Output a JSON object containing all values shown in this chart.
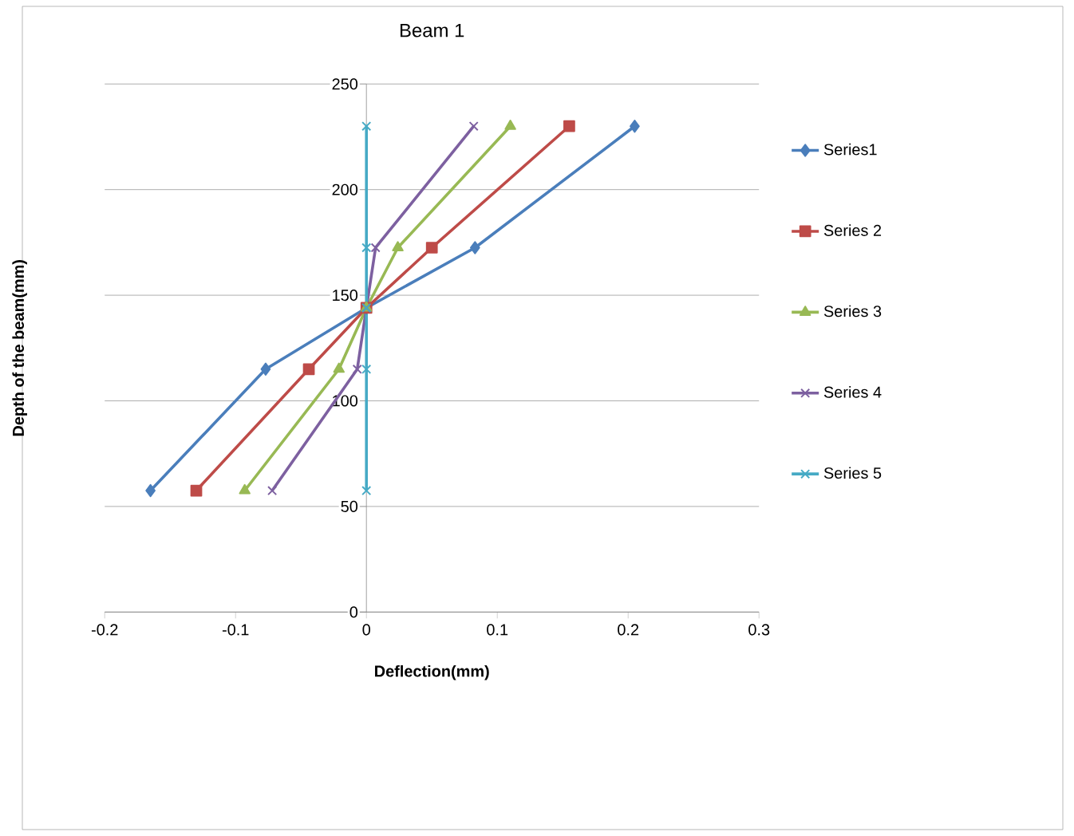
{
  "chart_data": {
    "type": "line",
    "title": "Beam 1",
    "xlabel": "Deflection(mm)",
    "ylabel": "Depth of the beam(mm)",
    "xlim": [
      -0.2,
      0.3
    ],
    "xticks": [
      -0.2,
      -0.1,
      0,
      0.1,
      0.2,
      0.3
    ],
    "ylim": [
      0,
      250
    ],
    "yticks": [
      0,
      50,
      100,
      150,
      200,
      250
    ],
    "grid": "y",
    "legend": "right",
    "series": [
      {
        "name": "Series1",
        "color": "#4a7ebb",
        "marker": "diamond",
        "x": [
          -0.165,
          -0.077,
          0,
          0.083,
          0.205
        ],
        "values": [
          57.5,
          115,
          144,
          172.5,
          230
        ]
      },
      {
        "name": "Series 2",
        "color": "#be4b48",
        "marker": "square",
        "x": [
          -0.13,
          -0.044,
          0,
          0.05,
          0.155
        ],
        "values": [
          57.5,
          115,
          144,
          172.5,
          230
        ]
      },
      {
        "name": "Series 3",
        "color": "#98b954",
        "marker": "triangle",
        "x": [
          -0.093,
          -0.021,
          0,
          0.024,
          0.11
        ],
        "values": [
          57.5,
          115,
          144,
          172.5,
          230
        ]
      },
      {
        "name": "Series 4",
        "color": "#7d60a0",
        "marker": "cross",
        "x": [
          -0.072,
          -0.007,
          0,
          0.007,
          0.082
        ],
        "values": [
          57.5,
          115,
          144,
          172.5,
          230
        ]
      },
      {
        "name": "Series 5",
        "color": "#46aac5",
        "marker": "cross",
        "x": [
          0,
          0,
          0,
          0,
          0
        ],
        "values": [
          57.5,
          115,
          144,
          172.5,
          230
        ]
      }
    ]
  }
}
